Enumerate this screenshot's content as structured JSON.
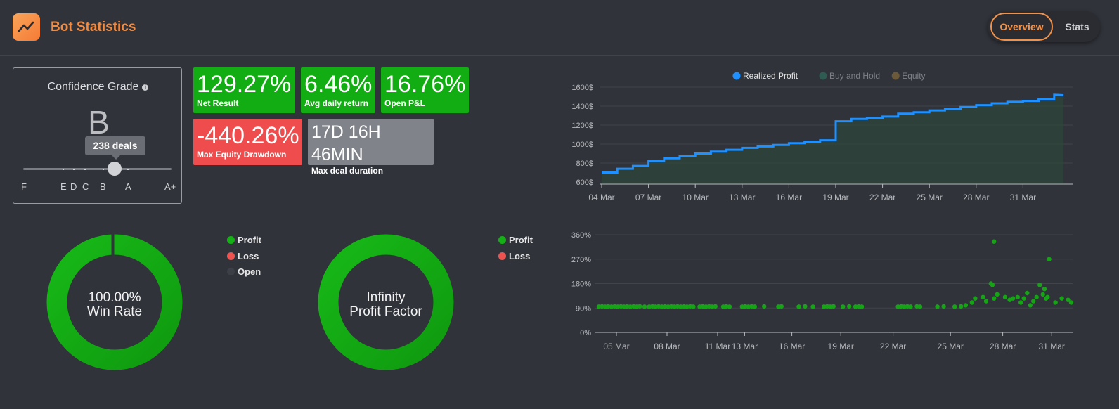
{
  "header": {
    "title": "Bot Statistics",
    "logo_icon": "trend-line-icon",
    "tabs": [
      {
        "label": "Overview",
        "active": true
      },
      {
        "label": "Stats",
        "active": false
      }
    ]
  },
  "confidence": {
    "title": "Confidence Grade",
    "grade": "B",
    "tooltip": "238 deals",
    "labels": [
      "F",
      "E",
      "D",
      "C",
      "B",
      "A",
      "A+"
    ]
  },
  "metrics": [
    {
      "value": "129.27%",
      "label": "Net Result",
      "color": "#12ad12"
    },
    {
      "value": "6.46%",
      "label": "Avg daily return",
      "color": "#12ad12"
    },
    {
      "value": "16.76%",
      "label": "Open P&L",
      "color": "#12ad12"
    },
    {
      "value": "-440.26%",
      "label": "Max Equity Drawdown",
      "color": "#ef4d4d"
    },
    {
      "value": "17D 16H 46MIN",
      "label": "Max deal duration",
      "color": "#80838a"
    }
  ],
  "donuts": [
    {
      "line1": "100.00%",
      "line2": "Win Rate",
      "legend": [
        {
          "label": "Profit",
          "color": "#15b015"
        },
        {
          "label": "Loss",
          "color": "#ef5350"
        },
        {
          "label": "Open",
          "color": "#3c3f46"
        }
      ]
    },
    {
      "line1": "Infinity",
      "line2": "Profit Factor",
      "legend": [
        {
          "label": "Profit",
          "color": "#15b015"
        },
        {
          "label": "Loss",
          "color": "#ef5350"
        }
      ]
    }
  ],
  "chart_data": [
    {
      "type": "line",
      "legend": [
        "Realized Profit",
        "Buy and Hold",
        "Equity"
      ],
      "legend_colors": [
        "#1e90ff",
        "#2e5b52",
        "#6b5a3a"
      ],
      "legend_position": "top-center",
      "yticks": [
        "600$",
        "800$",
        "1000$",
        "1200$",
        "1400$",
        "1600$"
      ],
      "ylim": [
        600,
        1600
      ],
      "xticks": [
        "04 Mar",
        "07 Mar",
        "10 Mar",
        "13 Mar",
        "16 Mar",
        "19 Mar",
        "22 Mar",
        "25 Mar",
        "28 Mar",
        "31 Mar"
      ],
      "xlim": [
        0,
        30
      ],
      "grid": true,
      "series": [
        {
          "name": "Realized Profit",
          "x": [
            0,
            1,
            1,
            2,
            2,
            3,
            3,
            4,
            4,
            5,
            5,
            6,
            6,
            7,
            7,
            8,
            8,
            9,
            9,
            10,
            10,
            11,
            11,
            12,
            12,
            13,
            13,
            14,
            14,
            15,
            15,
            16,
            16,
            17,
            17,
            18,
            18,
            19,
            19,
            20,
            20,
            21,
            21,
            22,
            22,
            23,
            23,
            24,
            24,
            25,
            25,
            26,
            26,
            27,
            27,
            28,
            28,
            29,
            29,
            29.6
          ],
          "y": [
            700,
            700,
            740,
            740,
            770,
            770,
            820,
            820,
            850,
            850,
            870,
            870,
            900,
            900,
            920,
            920,
            940,
            940,
            960,
            960,
            975,
            975,
            990,
            990,
            1010,
            1010,
            1025,
            1025,
            1040,
            1040,
            1240,
            1240,
            1265,
            1265,
            1275,
            1275,
            1290,
            1290,
            1320,
            1320,
            1335,
            1335,
            1355,
            1355,
            1370,
            1370,
            1390,
            1390,
            1410,
            1410,
            1430,
            1430,
            1445,
            1445,
            1455,
            1455,
            1470,
            1470,
            1520,
            1515
          ]
        }
      ]
    },
    {
      "type": "scatter",
      "yticks": [
        "0%",
        "90%",
        "180%",
        "270%",
        "360%"
      ],
      "ylim": [
        0,
        360
      ],
      "xticks": [
        "05 Mar",
        "08 Mar",
        "11 Mar",
        "13 Mar",
        "16 Mar",
        "19 Mar",
        "22 Mar",
        "25 Mar",
        "28 Mar",
        "31 Mar"
      ],
      "xlim": [
        0,
        30
      ],
      "grid": true,
      "color": "#16a316",
      "points": [
        [
          0.0,
          95
        ],
        [
          0.2,
          96
        ],
        [
          0.4,
          95
        ],
        [
          0.6,
          96
        ],
        [
          0.8,
          95
        ],
        [
          1.0,
          96
        ],
        [
          1.2,
          95
        ],
        [
          1.4,
          96
        ],
        [
          1.6,
          95
        ],
        [
          1.8,
          96
        ],
        [
          2.0,
          95
        ],
        [
          2.2,
          96
        ],
        [
          2.4,
          95
        ],
        [
          2.6,
          96
        ],
        [
          2.9,
          95
        ],
        [
          3.2,
          95
        ],
        [
          3.4,
          96
        ],
        [
          3.6,
          95
        ],
        [
          3.8,
          96
        ],
        [
          4.0,
          95
        ],
        [
          4.2,
          96
        ],
        [
          4.4,
          95
        ],
        [
          4.6,
          96
        ],
        [
          4.8,
          95
        ],
        [
          5.0,
          96
        ],
        [
          5.2,
          95
        ],
        [
          5.4,
          96
        ],
        [
          5.6,
          95
        ],
        [
          5.8,
          96
        ],
        [
          6.0,
          95
        ],
        [
          6.4,
          95
        ],
        [
          6.6,
          96
        ],
        [
          6.8,
          95
        ],
        [
          7.0,
          96
        ],
        [
          7.2,
          95
        ],
        [
          7.4,
          96
        ],
        [
          7.9,
          95
        ],
        [
          8.1,
          96
        ],
        [
          8.3,
          95
        ],
        [
          9.1,
          95
        ],
        [
          9.3,
          96
        ],
        [
          9.5,
          95
        ],
        [
          9.7,
          96
        ],
        [
          9.9,
          95
        ],
        [
          10.5,
          96
        ],
        [
          11.4,
          95
        ],
        [
          11.6,
          96
        ],
        [
          12.7,
          95
        ],
        [
          13.1,
          96
        ],
        [
          13.6,
          95
        ],
        [
          14.3,
          95
        ],
        [
          14.5,
          96
        ],
        [
          14.7,
          95
        ],
        [
          14.9,
          96
        ],
        [
          15.5,
          95
        ],
        [
          15.9,
          96
        ],
        [
          16.3,
          95
        ],
        [
          16.5,
          96
        ],
        [
          16.7,
          95
        ],
        [
          19.0,
          95
        ],
        [
          19.2,
          96
        ],
        [
          19.4,
          95
        ],
        [
          19.6,
          96
        ],
        [
          19.8,
          95
        ],
        [
          20.2,
          96
        ],
        [
          20.4,
          95
        ],
        [
          21.5,
          95
        ],
        [
          21.9,
          96
        ],
        [
          22.6,
          95
        ],
        [
          23.0,
          96
        ],
        [
          23.3,
          100
        ],
        [
          23.7,
          110
        ],
        [
          23.9,
          125
        ],
        [
          24.4,
          130
        ],
        [
          24.6,
          115
        ],
        [
          24.9,
          180
        ],
        [
          25.0,
          175
        ],
        [
          25.1,
          125
        ],
        [
          25.3,
          140
        ],
        [
          25.1,
          335
        ],
        [
          25.8,
          130
        ],
        [
          26.1,
          120
        ],
        [
          26.3,
          125
        ],
        [
          26.6,
          130
        ],
        [
          26.8,
          110
        ],
        [
          27.0,
          125
        ],
        [
          27.2,
          145
        ],
        [
          27.4,
          100
        ],
        [
          27.6,
          115
        ],
        [
          27.8,
          130
        ],
        [
          28.0,
          175
        ],
        [
          28.2,
          140
        ],
        [
          28.4,
          125
        ],
        [
          28.3,
          160
        ],
        [
          28.6,
          270
        ],
        [
          28.5,
          130
        ],
        [
          29.0,
          110
        ],
        [
          29.4,
          125
        ],
        [
          29.8,
          120
        ],
        [
          30.0,
          110
        ]
      ]
    }
  ]
}
